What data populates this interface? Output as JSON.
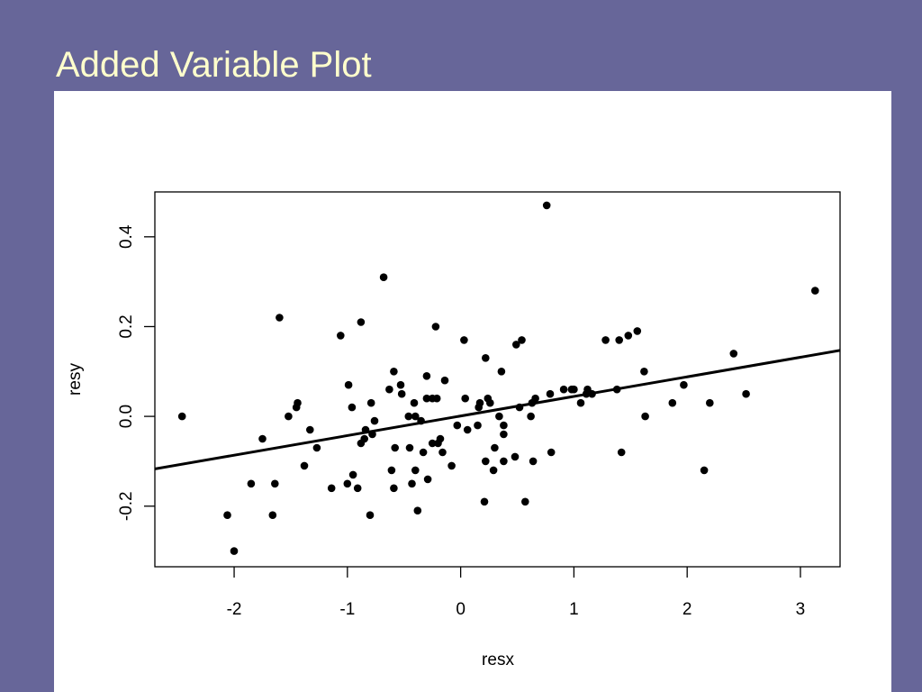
{
  "slide": {
    "title": "Added Variable Plot"
  },
  "colors": {
    "background": "#676699",
    "title": "#ffffcc",
    "panel": "#ffffff",
    "ink": "#000000"
  },
  "chart_data": {
    "type": "scatter",
    "title": "",
    "xlabel": "resx",
    "ylabel": "resy",
    "xlim": [
      -2.7,
      3.35
    ],
    "ylim": [
      -0.335,
      0.5
    ],
    "x_ticks": [
      -2,
      -1,
      0,
      1,
      2,
      3
    ],
    "x_tick_labels": [
      "-2",
      "-1",
      "0",
      "1",
      "2",
      "3"
    ],
    "y_ticks": [
      -0.2,
      0.0,
      0.2,
      0.4
    ],
    "y_tick_labels": [
      "-0.2",
      "0.0",
      "0.2",
      "0.4"
    ],
    "grid": false,
    "fit_line": {
      "x": [
        -2.7,
        3.35
      ],
      "y": [
        -0.117,
        0.147
      ]
    },
    "series": [
      {
        "points": [
          [
            -2.46,
            0.0
          ],
          [
            -2.06,
            -0.22
          ],
          [
            -2.0,
            -0.3
          ],
          [
            -1.85,
            -0.15
          ],
          [
            -1.75,
            -0.05
          ],
          [
            -1.66,
            -0.22
          ],
          [
            -1.64,
            -0.15
          ],
          [
            -1.6,
            0.22
          ],
          [
            -1.52,
            0.0
          ],
          [
            -1.45,
            0.02
          ],
          [
            -1.44,
            0.03
          ],
          [
            -1.38,
            -0.11
          ],
          [
            -1.33,
            -0.03
          ],
          [
            -1.27,
            -0.07
          ],
          [
            -1.14,
            -0.16
          ],
          [
            -1.06,
            0.18
          ],
          [
            -1.0,
            -0.15
          ],
          [
            -0.99,
            0.07
          ],
          [
            -0.96,
            0.02
          ],
          [
            -0.95,
            -0.13
          ],
          [
            -0.91,
            -0.16
          ],
          [
            -0.88,
            -0.06
          ],
          [
            -0.88,
            0.21
          ],
          [
            -0.85,
            -0.05
          ],
          [
            -0.84,
            -0.03
          ],
          [
            -0.8,
            -0.22
          ],
          [
            -0.79,
            0.03
          ],
          [
            -0.78,
            -0.04
          ],
          [
            -0.76,
            -0.01
          ],
          [
            -0.68,
            0.31
          ],
          [
            -0.63,
            0.06
          ],
          [
            -0.61,
            -0.12
          ],
          [
            -0.59,
            -0.16
          ],
          [
            -0.59,
            0.1
          ],
          [
            -0.58,
            -0.07
          ],
          [
            -0.53,
            0.07
          ],
          [
            -0.52,
            0.05
          ],
          [
            -0.46,
            0.0
          ],
          [
            -0.45,
            -0.07
          ],
          [
            -0.43,
            -0.15
          ],
          [
            -0.41,
            0.03
          ],
          [
            -0.4,
            -0.12
          ],
          [
            -0.4,
            0.0
          ],
          [
            -0.38,
            -0.21
          ],
          [
            -0.35,
            -0.01
          ],
          [
            -0.33,
            -0.08
          ],
          [
            -0.3,
            0.09
          ],
          [
            -0.3,
            0.04
          ],
          [
            -0.29,
            -0.14
          ],
          [
            -0.25,
            -0.06
          ],
          [
            -0.25,
            0.04
          ],
          [
            -0.22,
            0.2
          ],
          [
            -0.21,
            0.04
          ],
          [
            -0.2,
            -0.06
          ],
          [
            -0.18,
            -0.05
          ],
          [
            -0.16,
            -0.08
          ],
          [
            -0.14,
            0.08
          ],
          [
            -0.08,
            -0.11
          ],
          [
            -0.03,
            -0.02
          ],
          [
            0.03,
            0.17
          ],
          [
            0.04,
            0.04
          ],
          [
            0.06,
            -0.03
          ],
          [
            0.15,
            -0.02
          ],
          [
            0.16,
            0.02
          ],
          [
            0.17,
            0.03
          ],
          [
            0.21,
            -0.19
          ],
          [
            0.22,
            0.13
          ],
          [
            0.22,
            -0.1
          ],
          [
            0.24,
            0.04
          ],
          [
            0.26,
            0.03
          ],
          [
            0.29,
            -0.12
          ],
          [
            0.3,
            -0.07
          ],
          [
            0.34,
            0.0
          ],
          [
            0.36,
            0.1
          ],
          [
            0.38,
            -0.02
          ],
          [
            0.38,
            -0.04
          ],
          [
            0.38,
            -0.1
          ],
          [
            0.48,
            -0.09
          ],
          [
            0.49,
            0.16
          ],
          [
            0.52,
            0.02
          ],
          [
            0.54,
            0.17
          ],
          [
            0.57,
            -0.19
          ],
          [
            0.62,
            0.0
          ],
          [
            0.63,
            0.03
          ],
          [
            0.64,
            -0.1
          ],
          [
            0.66,
            0.04
          ],
          [
            0.76,
            0.47
          ],
          [
            0.79,
            0.05
          ],
          [
            0.8,
            -0.08
          ],
          [
            0.91,
            0.06
          ],
          [
            0.98,
            0.06
          ],
          [
            1.0,
            0.06
          ],
          [
            1.06,
            0.03
          ],
          [
            1.11,
            0.05
          ],
          [
            1.12,
            0.06
          ],
          [
            1.16,
            0.05
          ],
          [
            1.28,
            0.17
          ],
          [
            1.38,
            0.06
          ],
          [
            1.4,
            0.17
          ],
          [
            1.42,
            -0.08
          ],
          [
            1.48,
            0.18
          ],
          [
            1.56,
            0.19
          ],
          [
            1.62,
            0.1
          ],
          [
            1.63,
            0.0
          ],
          [
            1.87,
            0.03
          ],
          [
            1.97,
            0.07
          ],
          [
            2.15,
            -0.12
          ],
          [
            2.2,
            0.03
          ],
          [
            2.41,
            0.14
          ],
          [
            2.52,
            0.05
          ],
          [
            3.13,
            0.28
          ]
        ]
      }
    ]
  }
}
